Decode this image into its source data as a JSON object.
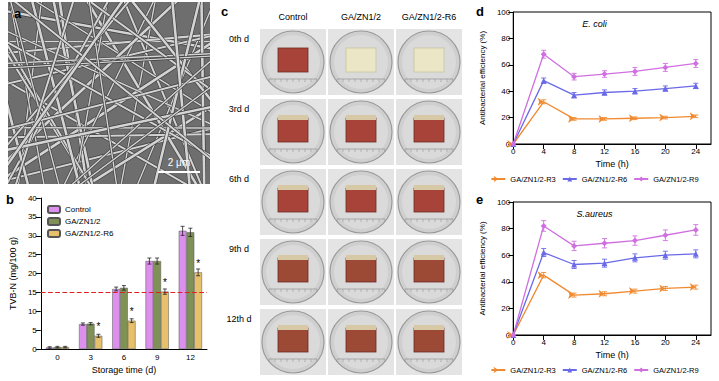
{
  "panel_labels": [
    "a",
    "b",
    "c",
    "d",
    "e"
  ],
  "sem_image": {
    "scale_bar": "2 μm"
  },
  "photos": {
    "columns": [
      "Control",
      "GA/ZN1/2",
      "GA/ZN1/2-R6"
    ],
    "rows": [
      "0th d",
      "3rd d",
      "6th d",
      "9th d",
      "12th d"
    ]
  },
  "chart_data": [
    {
      "type": "bar",
      "x_label": "Storage time (d)",
      "y_label": "TVB-N (mg/100 g)",
      "categories": [
        "0",
        "3",
        "6",
        "9",
        "12"
      ],
      "series": [
        {
          "name": "Control",
          "color": "#dd8fee",
          "values": [
            0.4,
            6.6,
            15.9,
            23.3,
            31.3
          ],
          "errors": [
            0.2,
            0.3,
            0.5,
            0.8,
            1.2
          ]
        },
        {
          "name": "GA/ZN1/2",
          "color": "#7f9156",
          "values": [
            0.5,
            6.7,
            16.2,
            23.3,
            30.9
          ],
          "errors": [
            0.2,
            0.3,
            0.6,
            0.8,
            1.1
          ]
        },
        {
          "name": "GA/ZN1/2-R6",
          "color": "#e6c06a",
          "values": [
            0.5,
            3.5,
            7.5,
            15.2,
            20.3
          ],
          "errors": [
            0.2,
            0.4,
            0.5,
            0.7,
            0.9
          ]
        }
      ],
      "annotations": [
        {
          "text": "*",
          "series": "GA/ZN1/2-R6",
          "categories": [
            "3",
            "6",
            "9",
            "12"
          ]
        }
      ],
      "reference_line": {
        "value": 15,
        "color": "#e02020",
        "line_style": "dashed"
      },
      "ylim": [
        0,
        40
      ],
      "yticks": [
        0,
        5,
        10,
        15,
        20,
        25,
        30,
        35,
        40
      ],
      "grid": false,
      "legend": "upper left"
    },
    {
      "type": "line",
      "title": "E. coli",
      "x_label": "Time (h)",
      "y_label": "Antibacterial efficiency (%)",
      "x": [
        0,
        4,
        8,
        12,
        16,
        20,
        24
      ],
      "series": [
        {
          "name": "GA/ZN1/2-R3",
          "color": "#f08a30",
          "marker": "arrow",
          "values": [
            0,
            32,
            19,
            19,
            19.5,
            20,
            21
          ],
          "errors": [
            0,
            1.5,
            1,
            1,
            1,
            1,
            1
          ]
        },
        {
          "name": "GA/ZN1/2-R6",
          "color": "#6a6ae8",
          "marker": "triangle",
          "values": [
            0,
            48,
            37,
            39,
            40,
            42,
            44
          ],
          "errors": [
            0,
            2,
            2,
            2,
            2,
            2,
            2
          ]
        },
        {
          "name": "GA/ZN1/2-R9",
          "color": "#d070e0",
          "marker": "diamond",
          "values": [
            0,
            68,
            51,
            53,
            55,
            58,
            61
          ],
          "errors": [
            0,
            3,
            2.5,
            2.5,
            3,
            3,
            3
          ]
        }
      ],
      "xlim": [
        0,
        26
      ],
      "xticks": [
        0,
        4,
        8,
        12,
        16,
        20,
        24
      ],
      "ylim": [
        0,
        100
      ],
      "yticks": [
        0,
        20,
        40,
        60,
        80,
        100
      ],
      "grid": false,
      "legend": "bottom"
    },
    {
      "type": "line",
      "title": "S.aureus",
      "x_label": "Time (h)",
      "y_label": "Antibacterial efficiency (%)",
      "x": [
        0,
        4,
        8,
        12,
        16,
        20,
        24
      ],
      "series": [
        {
          "name": "GA/ZN1/2-R3",
          "color": "#f08a30",
          "marker": "arrow",
          "values": [
            0,
            45,
            30,
            31,
            33,
            35,
            36
          ],
          "errors": [
            0,
            2,
            1.5,
            1.5,
            1.5,
            1.5,
            1.5
          ]
        },
        {
          "name": "GA/ZN1/2-R6",
          "color": "#6a6ae8",
          "marker": "triangle",
          "values": [
            0,
            62,
            53,
            54,
            58,
            60,
            61
          ],
          "errors": [
            0,
            3,
            3,
            3,
            3,
            3,
            3
          ]
        },
        {
          "name": "GA/ZN1/2-R9",
          "color": "#d070e0",
          "marker": "diamond",
          "values": [
            0,
            82,
            67,
            69,
            71,
            75,
            79
          ],
          "errors": [
            0,
            4,
            3.5,
            3.5,
            3.5,
            4,
            4
          ]
        }
      ],
      "xlim": [
        0,
        26
      ],
      "xticks": [
        0,
        4,
        8,
        12,
        16,
        20,
        24
      ],
      "ylim": [
        0,
        100
      ],
      "yticks": [
        0,
        20,
        40,
        60,
        80,
        100
      ],
      "grid": false,
      "legend": "bottom"
    }
  ]
}
